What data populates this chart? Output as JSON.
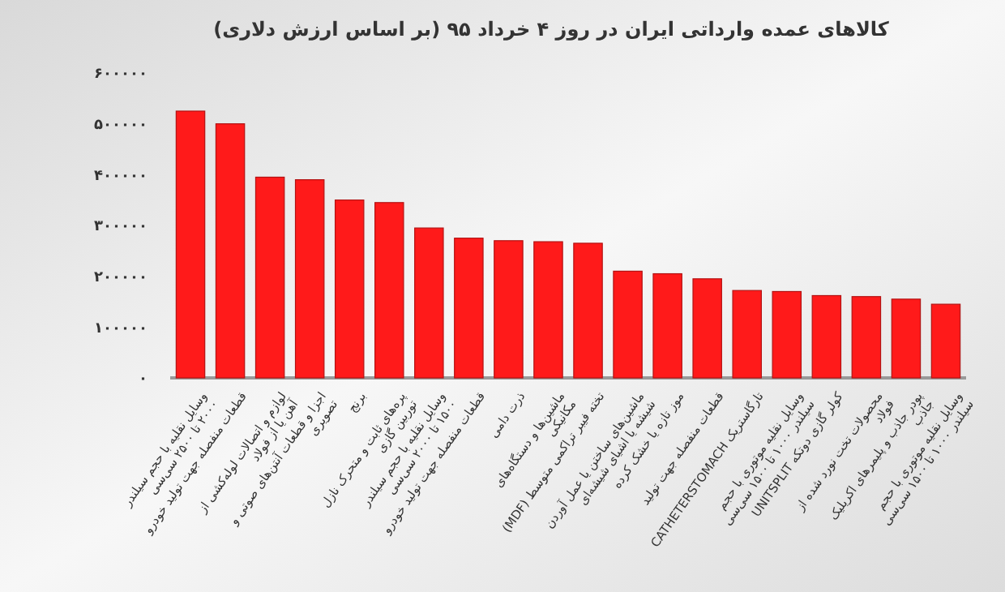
{
  "chart_data": {
    "type": "bar",
    "title": "کالاهای عمده وارداتی ایران در روز ۴ خرداد ۹۵ (بر اساس ارزش دلاری)",
    "categories": [
      "وسایل نقلیه با حجم سیلندر ۲۰۰۰ تا ۲۵۰۰ سی‌سی",
      "قطعات منفصله جهت تولید خودرو",
      "لوازم و اتصالات لوله‌کشی از آهن یا از فولاد",
      "اجزا و قطعات آنتن‌های صوتی و تصویری",
      "برنج",
      "پره‌های ثابت و متحرک نازل توربین گازی",
      "وسایل نقلیه با حجم سیلندر ۱۵۰۰ تا ۲۰۰۰ سی‌سی",
      "قطعات منفصله جهت تولید خودرو",
      "ذرت دامی",
      "ماشین‌ها و دستگاه‌های مکانیکی",
      "تخته فیبر تراکمی متوسط (MDF)",
      "ماشین‌های ساختن یا عمل آوردن شیشه یا اشیای شیشه‌ای",
      "موز تازه یا خشک کرده",
      "قطعات منفصله جهت تولید",
      "تارگاستریک CATHETERSTOMACH",
      "وسایل نقلیه موتوری با حجم سیلندر ۱۰۰۰ تا ۱۵۰۰ سی‌سی",
      "کولر گازی دوتکه UNITSPLIT",
      "محصولات تخت نورد شده از فولاد",
      "پودر جاذب و پلیمرهای اکریلیک جاذب",
      "وسایل نقلیه موتوری با حجم سیلندر ۱۰۰۰ تا ۱۵۰۰ سی‌سی"
    ],
    "values": [
      525000,
      500000,
      395000,
      390000,
      350000,
      345000,
      295000,
      275000,
      270000,
      268000,
      265000,
      210000,
      205000,
      195000,
      172000,
      170000,
      162000,
      160000,
      155000,
      145000
    ],
    "color": "#ff1a1a",
    "ylim": [
      0,
      600000
    ],
    "yticks": [
      {
        "value": 0,
        "label": "۰"
      },
      {
        "value": 100000,
        "label": "۱۰۰۰۰۰"
      },
      {
        "value": 200000,
        "label": "۲۰۰۰۰۰"
      },
      {
        "value": 300000,
        "label": "۳۰۰۰۰۰"
      },
      {
        "value": 400000,
        "label": "۴۰۰۰۰۰"
      },
      {
        "value": 500000,
        "label": "۵۰۰۰۰۰"
      },
      {
        "value": 600000,
        "label": "۶۰۰۰۰۰"
      }
    ]
  }
}
